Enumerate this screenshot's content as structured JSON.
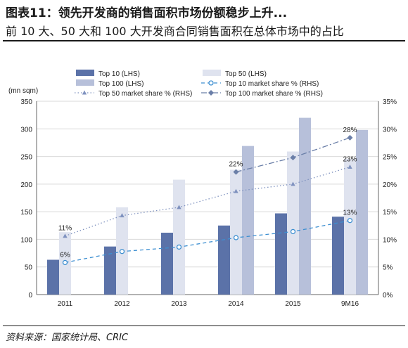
{
  "header": {
    "title": "图表11：领先开发商的销售面积市场份额稳步上升...",
    "subtitle": "前 10 大、50 大和 100 大开发商合同销售面积在总体市场中的占比"
  },
  "footer": {
    "source": "资料来源：国家统计局、CRIC"
  },
  "chart_data": {
    "type": "bar",
    "ylabel": "(mn sqm)",
    "categories": [
      "2011",
      "2012",
      "2013",
      "2014",
      "2015",
      "9M16"
    ],
    "ylim": [
      0,
      350
    ],
    "y_ticks": [
      0,
      50,
      100,
      150,
      200,
      250,
      300,
      350
    ],
    "y2lim": [
      0,
      35
    ],
    "y2_ticks": [
      "0%",
      "5%",
      "10%",
      "15%",
      "20%",
      "25%",
      "30%",
      "35%"
    ],
    "grid": true,
    "legend_position": "top",
    "series": [
      {
        "name": "Top 10 (LHS)",
        "kind": "bar",
        "axis": "left",
        "color": "#5b72a8",
        "values": [
          63,
          87,
          112,
          125,
          147,
          141
        ]
      },
      {
        "name": "Top 50 (LHS)",
        "kind": "bar",
        "axis": "left",
        "color": "#dfe3ef",
        "values": [
          113,
          158,
          208,
          226,
          259,
          246
        ]
      },
      {
        "name": "Top 100 (LHS)",
        "kind": "bar",
        "axis": "left",
        "color": "#b7c0da",
        "values": [
          null,
          null,
          null,
          269,
          320,
          298
        ]
      },
      {
        "name": "Top 10 market share % (RHS)",
        "kind": "line",
        "axis": "right",
        "color": "#3d8fd1",
        "dash": "5,4",
        "marker": "circle-open",
        "values": [
          5.8,
          7.8,
          8.6,
          10.3,
          11.4,
          13.4
        ]
      },
      {
        "name": "Top 50 market share % (RHS)",
        "kind": "line",
        "axis": "right",
        "color": "#7f92bf",
        "dash": "1.5,3",
        "marker": "triangle",
        "values": [
          10.6,
          14.3,
          15.8,
          18.7,
          20.0,
          23.1
        ]
      },
      {
        "name": "Top 100 market share % (RHS)",
        "kind": "line",
        "axis": "right",
        "color": "#6b7fa8",
        "dash": "8,3,2,3",
        "marker": "diamond",
        "values": [
          null,
          null,
          null,
          22.2,
          24.8,
          28.4
        ]
      }
    ],
    "annotations": [
      {
        "text": "11%",
        "category": "2011",
        "value": 10.6
      },
      {
        "text": "6%",
        "category": "2011",
        "value": 5.8
      },
      {
        "text": "22%",
        "category": "2014",
        "value": 22.2
      },
      {
        "text": "28%",
        "category": "9M16",
        "value": 28.4
      },
      {
        "text": "23%",
        "category": "9M16",
        "value": 23.1
      },
      {
        "text": "13%",
        "category": "9M16",
        "value": 13.4
      }
    ]
  }
}
